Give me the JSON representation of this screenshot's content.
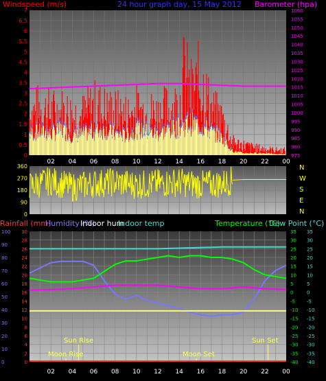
{
  "colors": {
    "wind": "#ff0000",
    "gust": "#ff0000",
    "baro": "#ff00ff",
    "dir": "#ffff00",
    "humidity": "#7777ff",
    "indoor_hum": "#ffffff",
    "indoor_temp": "#40e0d0",
    "temperature": "#00ff00",
    "dewpoint": "#40e0d0",
    "rain": "#ff3333",
    "astro": "#ffff55",
    "title": "#3333ff"
  },
  "chart_data": [
    {
      "type": "bar",
      "title": "24 hour graph day, 15 May 2012",
      "ylabel_left": "Windspeed (m/s)",
      "ylabel_right": "Barometer (hpa)",
      "ylim_left": [
        0,
        7
      ],
      "ylim_right": [
        975,
        1060
      ],
      "yticks_left": [
        "0",
        "0.5",
        "1",
        "1.5",
        "2",
        "2.5",
        "3",
        "3.5",
        "4",
        "4.5",
        "5",
        "5.5",
        "6",
        "6.5",
        "7"
      ],
      "yticks_right": [
        "975",
        "980",
        "985",
        "990",
        "995",
        "1000",
        "1005",
        "1010",
        "1015",
        "1020",
        "1025",
        "1030",
        "1035",
        "1040",
        "1045",
        "1050",
        "1055",
        "1060"
      ],
      "xticks": [
        "02",
        "04",
        "06",
        "08",
        "10",
        "12",
        "14",
        "16",
        "18",
        "20",
        "22",
        "00"
      ],
      "series": [
        {
          "name": "gust",
          "x": [
            0,
            1,
            2,
            3,
            4,
            5,
            6,
            7,
            8,
            9,
            10,
            11,
            12,
            13,
            14,
            14.5,
            15,
            15.5,
            16,
            17,
            18,
            19,
            20,
            21,
            22,
            23
          ],
          "values": [
            3.2,
            3.6,
            3.3,
            3.4,
            3.2,
            3.1,
            3.8,
            3.5,
            3.3,
            3.1,
            3.5,
            3.3,
            3.2,
            3.6,
            3.8,
            6.5,
            4.8,
            5.0,
            6.0,
            3.4,
            2.8,
            1.0,
            0.8,
            0.6,
            0.5,
            0.4
          ]
        },
        {
          "name": "average",
          "x": [
            0,
            1,
            2,
            3,
            4,
            5,
            6,
            7,
            8,
            9,
            10,
            11,
            12,
            13,
            14,
            15,
            16,
            17,
            18,
            19,
            20,
            21,
            22,
            23
          ],
          "values": [
            1.0,
            1.1,
            1.0,
            1.2,
            0.9,
            1.0,
            1.1,
            1.2,
            1.0,
            0.9,
            1.2,
            1.1,
            1.0,
            1.2,
            1.3,
            1.5,
            1.4,
            1.1,
            0.8,
            0.2,
            0.1,
            0.1,
            0.1,
            0.05
          ]
        },
        {
          "name": "barometer",
          "x": [
            0,
            2,
            4,
            6,
            8,
            10,
            12,
            14,
            16,
            18,
            20,
            22,
            24
          ],
          "values": [
            1014,
            1014.5,
            1015,
            1015.5,
            1016,
            1016.5,
            1017,
            1017,
            1016.5,
            1016,
            1015.5,
            1015.5,
            1015.5
          ]
        }
      ]
    },
    {
      "type": "scatter",
      "ylim": [
        0,
        360
      ],
      "yticks": [
        "0",
        "90",
        "180",
        "270",
        "360"
      ],
      "compass": [
        "N",
        "W",
        "S",
        "E",
        "N"
      ],
      "xticks": [
        "02",
        "04",
        "06",
        "08",
        "10",
        "12",
        "14",
        "16",
        "18",
        "20",
        "22",
        "00"
      ],
      "series": [
        {
          "name": "direction",
          "x": [
            0,
            2,
            4,
            6,
            8,
            10,
            12,
            14,
            16,
            18,
            19,
            20,
            22,
            24
          ],
          "values": [
            210,
            250,
            200,
            230,
            240,
            220,
            230,
            240,
            220,
            230,
            255,
            260,
            260,
            260
          ]
        }
      ]
    },
    {
      "type": "line",
      "legend": [
        "Rainfall (mm)",
        "Humidity (%)",
        "Indoor hum",
        "Indoor temp",
        "Temperature (°C)",
        "Dew Point (°C)"
      ],
      "ylim_left_hum": [
        0,
        100
      ],
      "yticks_hum": [
        "0",
        "10",
        "20",
        "30",
        "40",
        "50",
        "60",
        "70",
        "80",
        "90",
        "100"
      ],
      "ylim_left_rain": [
        0,
        30
      ],
      "yticks_rain": [
        "0",
        "2",
        "4",
        "6",
        "8",
        "10",
        "12",
        "14",
        "16",
        "18",
        "20",
        "22",
        "24",
        "26",
        "28",
        "30"
      ],
      "ylim_right_temp": [
        -40,
        35
      ],
      "yticks_temp": [
        "35",
        "30",
        "25",
        "20",
        "15",
        "10",
        "5",
        "0",
        "-5",
        "-10",
        "-15",
        "-20",
        "-25",
        "-30",
        "-35",
        "-40"
      ],
      "xticks": [
        "02",
        "04",
        "06",
        "08",
        "10",
        "12",
        "14",
        "16",
        "18",
        "20",
        "22",
        "00"
      ],
      "annotations": {
        "sun_rise": "Sun Rise",
        "sun_set": "Sun Set",
        "moon_rise": "Moon Rise",
        "moon_set": "Moon Set",
        "sun_rise_x": 4.6,
        "sun_set_x": 22.3,
        "moon_rise_x": 3.4,
        "moon_set_x": 15.6
      },
      "series": [
        {
          "name": "humidity",
          "x": [
            0,
            1,
            2,
            3,
            4,
            5,
            6,
            7,
            8,
            9,
            10,
            11,
            12,
            13,
            14,
            15,
            16,
            17,
            18,
            19,
            20,
            21,
            22,
            23,
            24
          ],
          "values": [
            68,
            72,
            76,
            77,
            77,
            77,
            74,
            62,
            52,
            48,
            51,
            47,
            45,
            43,
            41,
            38,
            36,
            35,
            36,
            36,
            38,
            48,
            62,
            70,
            74
          ]
        },
        {
          "name": "indoor_hum",
          "x": [
            0,
            24
          ],
          "values": [
            39,
            39
          ]
        },
        {
          "name": "indoor_temp",
          "x": [
            0,
            6,
            12,
            18,
            24
          ],
          "values": [
            25,
            25,
            25,
            26,
            26
          ]
        },
        {
          "name": "temperature",
          "x": [
            0,
            1,
            2,
            3,
            4,
            5,
            6,
            7,
            8,
            9,
            10,
            11,
            12,
            13,
            14,
            15,
            16,
            17,
            18,
            19,
            20,
            21,
            22,
            23,
            24
          ],
          "values": [
            8,
            7,
            6,
            6,
            6,
            7,
            8,
            12,
            16,
            18,
            18,
            19,
            20,
            21,
            20,
            21,
            21,
            20,
            20,
            19,
            17,
            13,
            10,
            9,
            8
          ]
        },
        {
          "name": "dewpoint",
          "x": [
            0,
            2,
            4,
            6,
            8,
            10,
            12,
            14,
            16,
            18,
            20,
            22,
            24
          ],
          "values": [
            1.2,
            1.5,
            2,
            3,
            4,
            4,
            4,
            3,
            2,
            2,
            3,
            2,
            1.5
          ]
        },
        {
          "name": "rainfall",
          "x": [
            0,
            24
          ],
          "values": [
            0,
            0
          ]
        }
      ]
    }
  ]
}
